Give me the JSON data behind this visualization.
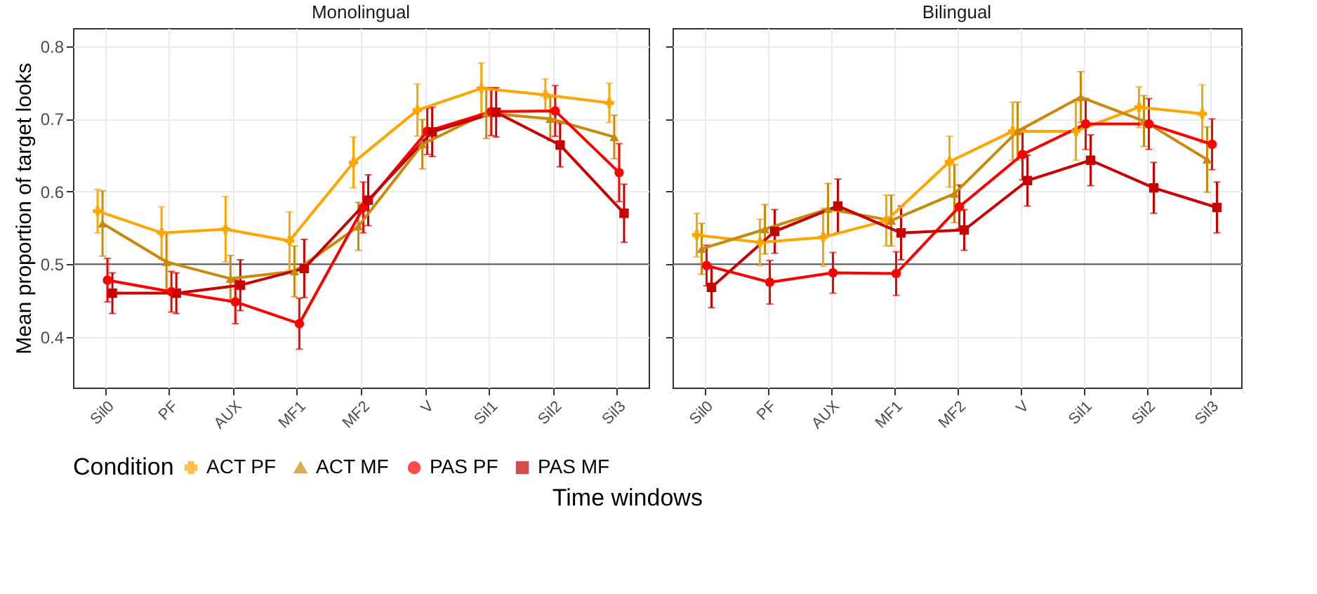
{
  "chart_data": [
    {
      "type": "line",
      "title": "Monolingual",
      "xlabel": "Time windows",
      "ylabel": "Mean proportion of target looks",
      "legend_title": "Condition",
      "legend": "bottom",
      "grid": true,
      "categories": [
        "Sil0",
        "PF",
        "AUX",
        "MF1",
        "MF2",
        "V",
        "Sil1",
        "Sil2",
        "Sil3"
      ],
      "ylim": [
        0.33,
        0.825
      ],
      "yticks": [
        0.4,
        0.5,
        0.6,
        0.7,
        0.8
      ],
      "ref_lines": [
        {
          "axis": "y",
          "value": 0.5,
          "color": "#555555"
        }
      ],
      "series": [
        {
          "name": "ACT PF",
          "color": "#ffa500",
          "marker": "cross",
          "values": [
            0.573,
            0.543,
            0.548,
            0.532,
            0.64,
            0.712,
            0.742,
            0.733,
            0.722
          ],
          "errors": [
            0.03,
            0.036,
            0.045,
            0.04,
            0.035,
            0.036,
            0.035,
            0.022,
            0.027
          ]
        },
        {
          "name": "ACT MF",
          "color": "#c98a0a",
          "marker": "triangle",
          "values": [
            0.556,
            0.503,
            0.48,
            0.49,
            0.552,
            0.665,
            0.708,
            0.7,
            0.675
          ],
          "errors": [
            0.045,
            0.04,
            0.032,
            0.035,
            0.033,
            0.034,
            0.035,
            0.03,
            0.03
          ]
        },
        {
          "name": "PAS PF",
          "color": "#ff0000",
          "marker": "circle",
          "values": [
            0.478,
            0.462,
            0.448,
            0.418,
            0.578,
            0.683,
            0.71,
            0.711,
            0.626
          ],
          "errors": [
            0.03,
            0.028,
            0.03,
            0.035,
            0.035,
            0.032,
            0.033,
            0.035,
            0.04
          ]
        },
        {
          "name": "PAS MF",
          "color": "#c80000",
          "marker": "square",
          "values": [
            0.46,
            0.46,
            0.471,
            0.494,
            0.588,
            0.682,
            0.709,
            0.664,
            0.57
          ],
          "errors": [
            0.028,
            0.028,
            0.035,
            0.04,
            0.035,
            0.034,
            0.034,
            0.03,
            0.04
          ]
        }
      ]
    },
    {
      "type": "line",
      "title": "Bilingual",
      "tick_labels": "x",
      "grid": true,
      "categories": [
        "Sil0",
        "PF",
        "AUX",
        "MF1",
        "MF2",
        "V",
        "Sil1",
        "Sil2",
        "Sil3"
      ],
      "ylim": [
        0.33,
        0.825
      ],
      "yticks": [
        0.4,
        0.5,
        0.6,
        0.7,
        0.8
      ],
      "ref_lines": [
        {
          "axis": "y",
          "value": 0.5,
          "color": "#555555"
        }
      ],
      "series": [
        {
          "name": "ACT PF",
          "color": "#ffa500",
          "marker": "cross",
          "values": [
            0.54,
            0.53,
            0.537,
            0.56,
            0.641,
            0.683,
            0.683,
            0.716,
            0.707
          ],
          "errors": [
            0.03,
            0.032,
            0.04,
            0.035,
            0.035,
            0.04,
            0.04,
            0.028,
            0.04
          ]
        },
        {
          "name": "ACT MF",
          "color": "#c98a0a",
          "marker": "triangle",
          "values": [
            0.521,
            0.548,
            0.576,
            0.56,
            0.597,
            0.683,
            0.73,
            0.697,
            0.644
          ],
          "errors": [
            0.035,
            0.034,
            0.035,
            0.035,
            0.04,
            0.04,
            0.035,
            0.035,
            0.045
          ]
        },
        {
          "name": "PAS PF",
          "color": "#ff0000",
          "marker": "circle",
          "values": [
            0.498,
            0.475,
            0.488,
            0.487,
            0.579,
            0.651,
            0.693,
            0.693,
            0.665
          ],
          "errors": [
            0.028,
            0.03,
            0.028,
            0.03,
            0.03,
            0.035,
            0.035,
            0.035,
            0.035
          ]
        },
        {
          "name": "PAS MF",
          "color": "#c80000",
          "marker": "square",
          "values": [
            0.468,
            0.545,
            0.58,
            0.543,
            0.547,
            0.615,
            0.643,
            0.605,
            0.578
          ],
          "errors": [
            0.028,
            0.03,
            0.037,
            0.037,
            0.028,
            0.035,
            0.035,
            0.035,
            0.035
          ]
        }
      ]
    }
  ]
}
